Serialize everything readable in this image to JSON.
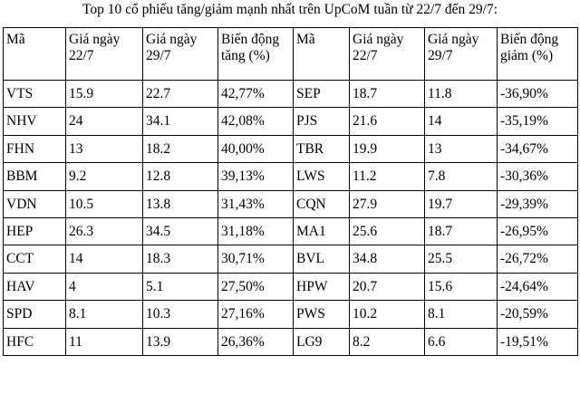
{
  "title": "Top 10 cổ phiếu tăng/giảm mạnh nhất trên UpCoM tuần từ 22/7 đến 29/7:",
  "table": {
    "header": [
      "Mã",
      "Giá ngày 22/7",
      "Giá ngày 29/7",
      "Biến động tăng (%)",
      "Mã",
      "Giá ngày 22/7",
      "Giá ngày 29/7",
      "Biến động giảm (%)"
    ],
    "rows": [
      [
        "VTS",
        "15.9",
        "22.7",
        "42,77%",
        "SEP",
        "18.7",
        "11.8",
        "-36,90%"
      ],
      [
        "NHV",
        "24",
        "34.1",
        "42,08%",
        "PJS",
        "21.6",
        "14",
        "-35,19%"
      ],
      [
        "FHN",
        "13",
        "18.2",
        "40,00%",
        "TBR",
        "19.9",
        "13",
        "-34,67%"
      ],
      [
        "BBM",
        "9.2",
        "12.8",
        "39,13%",
        "LWS",
        "11.2",
        "7.8",
        "-30,36%"
      ],
      [
        "VDN",
        "10.5",
        "13.8",
        "31,43%",
        "CQN",
        "27.9",
        "19.7",
        "-29,39%"
      ],
      [
        "HEP",
        "26.3",
        "34.5",
        "31,18%",
        "MA1",
        "25.6",
        "18.7",
        "-26,95%"
      ],
      [
        "CCT",
        "14",
        "18.3",
        "30,71%",
        "BVL",
        "34.8",
        "25.5",
        "-26,72%"
      ],
      [
        "HAV",
        "4",
        "5.1",
        "27,50%",
        "HPW",
        "20.7",
        "15.6",
        "-24,64%"
      ],
      [
        "SPD",
        "8.1",
        "10.3",
        "27,16%",
        "PWS",
        "10.2",
        "8.1",
        "-20,59%"
      ],
      [
        "HFC",
        "11",
        "13.9",
        "26,36%",
        "LG9",
        "8.2",
        "6.6",
        "-19,51%"
      ]
    ]
  }
}
